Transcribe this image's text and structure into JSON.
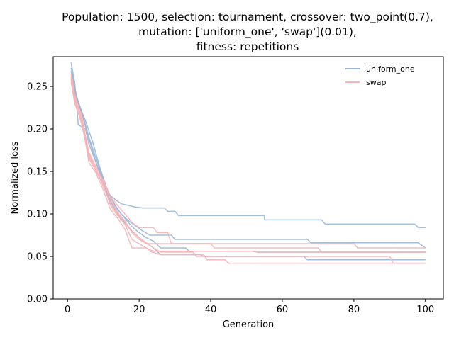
{
  "chart_data": {
    "type": "line",
    "title_lines": [
      "Population: 1500, selection: tournament, crossover: two_point(0.7),",
      "mutation: ['uniform_one', 'swap'](0.01),",
      "fitness: repetitions"
    ],
    "xlabel": "Generation",
    "ylabel": "Normalized loss",
    "xlim": [
      -4,
      105
    ],
    "ylim": [
      0.0,
      0.285
    ],
    "x_ticks": [
      0,
      20,
      40,
      60,
      80,
      100
    ],
    "x_tick_labels": [
      "0",
      "20",
      "40",
      "60",
      "80",
      "100"
    ],
    "y_ticks": [
      0.0,
      0.05,
      0.1,
      0.15,
      0.2,
      0.25
    ],
    "y_tick_labels": [
      "0.00",
      "0.05",
      "0.10",
      "0.15",
      "0.20",
      "0.25"
    ],
    "grid": false,
    "legend": {
      "position": "top-right",
      "entries": [
        {
          "label": "uniform_one",
          "color": "#9ab7d6"
        },
        {
          "label": "swap",
          "color": "#f6b4b8"
        }
      ]
    },
    "series": [
      {
        "group": "uniform_one",
        "color": "#9ab7d6",
        "points": [
          [
            1,
            0.278
          ],
          [
            2,
            0.255
          ],
          [
            3,
            0.205
          ],
          [
            5,
            0.2
          ],
          [
            6,
            0.182
          ],
          [
            8,
            0.16
          ],
          [
            10,
            0.14
          ],
          [
            11,
            0.125
          ],
          [
            13,
            0.118
          ],
          [
            15,
            0.112
          ],
          [
            17,
            0.11
          ],
          [
            19,
            0.108
          ],
          [
            21,
            0.107
          ],
          [
            27,
            0.107
          ],
          [
            28,
            0.103
          ],
          [
            30,
            0.103
          ],
          [
            31,
            0.098
          ],
          [
            55,
            0.098
          ],
          [
            55,
            0.093
          ],
          [
            71,
            0.093
          ],
          [
            72,
            0.088
          ],
          [
            97,
            0.088
          ],
          [
            98,
            0.084
          ],
          [
            100,
            0.084
          ]
        ]
      },
      {
        "group": "uniform_one",
        "color": "#9ab7d6",
        "points": [
          [
            1,
            0.272
          ],
          [
            2,
            0.25
          ],
          [
            3,
            0.23
          ],
          [
            5,
            0.21
          ],
          [
            7,
            0.185
          ],
          [
            9,
            0.155
          ],
          [
            11,
            0.13
          ],
          [
            13,
            0.112
          ],
          [
            15,
            0.1
          ],
          [
            17,
            0.092
          ],
          [
            19,
            0.086
          ],
          [
            21,
            0.08
          ],
          [
            23,
            0.075
          ],
          [
            29,
            0.075
          ],
          [
            30,
            0.07
          ],
          [
            67,
            0.07
          ],
          [
            68,
            0.066
          ],
          [
            98,
            0.066
          ],
          [
            100,
            0.06
          ]
        ]
      },
      {
        "group": "uniform_one",
        "color": "#9ab7d6",
        "points": [
          [
            1,
            0.268
          ],
          [
            2,
            0.245
          ],
          [
            4,
            0.22
          ],
          [
            6,
            0.19
          ],
          [
            8,
            0.165
          ],
          [
            10,
            0.14
          ],
          [
            12,
            0.12
          ],
          [
            14,
            0.105
          ],
          [
            16,
            0.095
          ],
          [
            18,
            0.085
          ],
          [
            20,
            0.078
          ],
          [
            22,
            0.072
          ],
          [
            24,
            0.068
          ],
          [
            26,
            0.06
          ],
          [
            33,
            0.06
          ],
          [
            34,
            0.056
          ],
          [
            52,
            0.056
          ],
          [
            53,
            0.055
          ],
          [
            100,
            0.055
          ]
        ]
      },
      {
        "group": "uniform_one",
        "color": "#9ab7d6",
        "points": [
          [
            1,
            0.262
          ],
          [
            2,
            0.242
          ],
          [
            4,
            0.218
          ],
          [
            6,
            0.188
          ],
          [
            8,
            0.16
          ],
          [
            10,
            0.135
          ],
          [
            12,
            0.115
          ],
          [
            14,
            0.1
          ],
          [
            16,
            0.09
          ],
          [
            18,
            0.08
          ],
          [
            20,
            0.072
          ],
          [
            22,
            0.066
          ],
          [
            24,
            0.06
          ],
          [
            26,
            0.052
          ],
          [
            37,
            0.052
          ],
          [
            38,
            0.05
          ],
          [
            66,
            0.05
          ],
          [
            67,
            0.046
          ],
          [
            100,
            0.046
          ]
        ]
      },
      {
        "group": "swap",
        "color": "#f6b4b8",
        "points": [
          [
            1,
            0.265
          ],
          [
            2,
            0.24
          ],
          [
            4,
            0.215
          ],
          [
            6,
            0.168
          ],
          [
            8,
            0.15
          ],
          [
            10,
            0.135
          ],
          [
            12,
            0.11
          ],
          [
            14,
            0.098
          ],
          [
            16,
            0.088
          ],
          [
            18,
            0.07
          ],
          [
            20,
            0.065
          ],
          [
            22,
            0.06
          ],
          [
            24,
            0.056
          ],
          [
            52,
            0.056
          ],
          [
            53,
            0.055
          ],
          [
            100,
            0.055
          ]
        ]
      },
      {
        "group": "swap",
        "color": "#f6b4b8",
        "points": [
          [
            1,
            0.26
          ],
          [
            2,
            0.235
          ],
          [
            4,
            0.21
          ],
          [
            6,
            0.16
          ],
          [
            8,
            0.148
          ],
          [
            10,
            0.128
          ],
          [
            12,
            0.105
          ],
          [
            14,
            0.095
          ],
          [
            16,
            0.082
          ],
          [
            18,
            0.06
          ],
          [
            22,
            0.06
          ],
          [
            23,
            0.056
          ],
          [
            26,
            0.052
          ],
          [
            38,
            0.052
          ],
          [
            39,
            0.046
          ],
          [
            44,
            0.046
          ],
          [
            45,
            0.042
          ],
          [
            100,
            0.042
          ]
        ]
      },
      {
        "group": "swap",
        "color": "#f6b4b8",
        "points": [
          [
            1,
            0.258
          ],
          [
            2,
            0.232
          ],
          [
            4,
            0.205
          ],
          [
            6,
            0.165
          ],
          [
            8,
            0.15
          ],
          [
            10,
            0.14
          ],
          [
            12,
            0.12
          ],
          [
            14,
            0.11
          ],
          [
            16,
            0.1
          ],
          [
            18,
            0.09
          ],
          [
            20,
            0.084
          ],
          [
            24,
            0.084
          ],
          [
            25,
            0.078
          ],
          [
            28,
            0.078
          ],
          [
            29,
            0.065
          ],
          [
            80,
            0.065
          ],
          [
            81,
            0.06
          ],
          [
            100,
            0.06
          ]
        ]
      },
      {
        "group": "swap",
        "color": "#f6b4b8",
        "points": [
          [
            1,
            0.262
          ],
          [
            2,
            0.238
          ],
          [
            4,
            0.212
          ],
          [
            6,
            0.172
          ],
          [
            8,
            0.155
          ],
          [
            10,
            0.138
          ],
          [
            12,
            0.118
          ],
          [
            14,
            0.102
          ],
          [
            16,
            0.092
          ],
          [
            18,
            0.078
          ],
          [
            20,
            0.07
          ],
          [
            22,
            0.065
          ],
          [
            40,
            0.065
          ],
          [
            41,
            0.06
          ],
          [
            70,
            0.06
          ],
          [
            71,
            0.055
          ],
          [
            100,
            0.055
          ]
        ]
      },
      {
        "group": "swap",
        "color": "#f6b4b8",
        "points": [
          [
            1,
            0.255
          ],
          [
            2,
            0.23
          ],
          [
            4,
            0.208
          ],
          [
            6,
            0.17
          ],
          [
            8,
            0.152
          ],
          [
            10,
            0.132
          ],
          [
            12,
            0.112
          ],
          [
            14,
            0.1
          ],
          [
            16,
            0.088
          ],
          [
            18,
            0.08
          ],
          [
            20,
            0.072
          ],
          [
            22,
            0.066
          ],
          [
            24,
            0.06
          ],
          [
            26,
            0.055
          ],
          [
            35,
            0.055
          ],
          [
            36,
            0.05
          ],
          [
            90,
            0.05
          ],
          [
            91,
            0.042
          ],
          [
            100,
            0.042
          ]
        ]
      }
    ]
  }
}
